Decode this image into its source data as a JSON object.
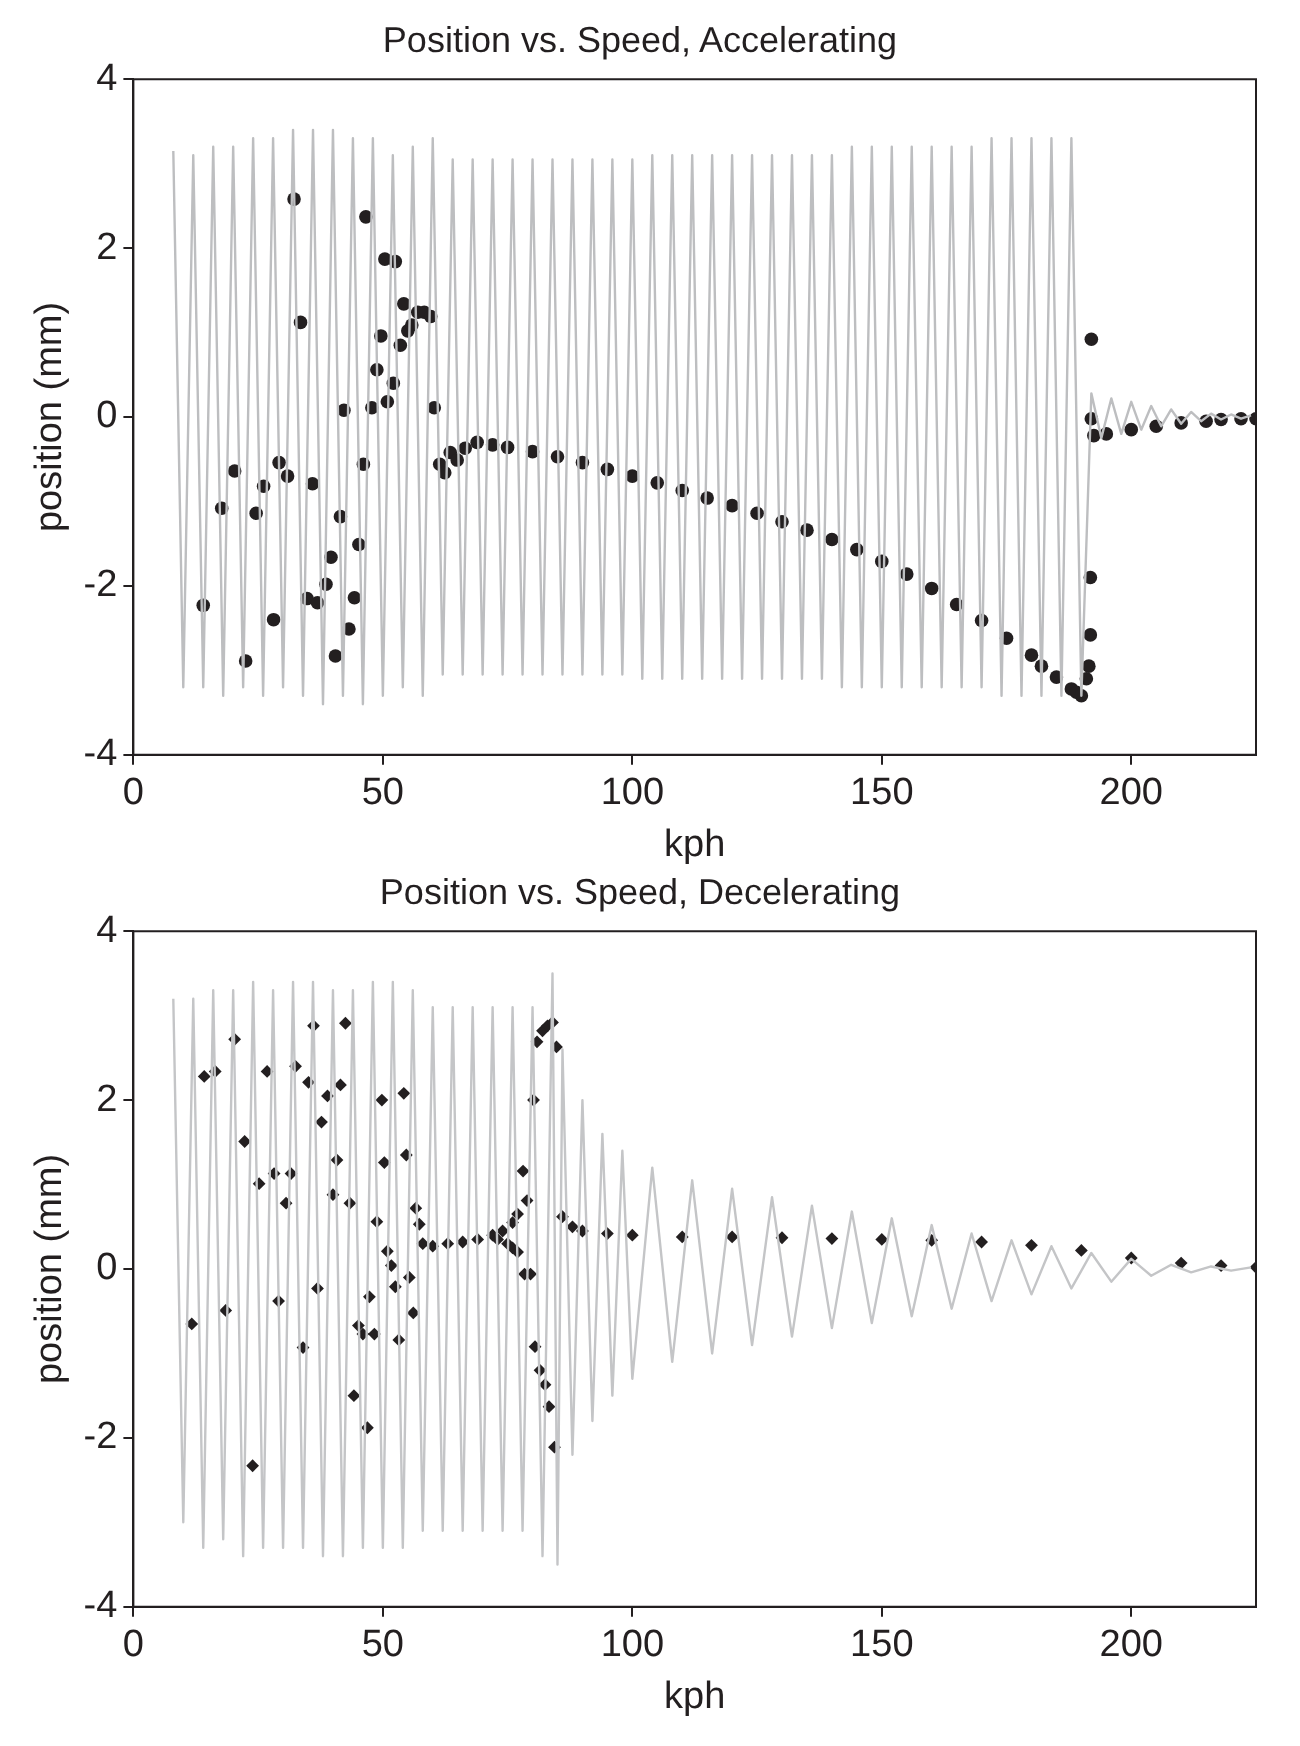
{
  "chart_data": [
    {
      "type": "scatter",
      "title": "Position vs. Speed, Accelerating",
      "xlabel": "kph",
      "ylabel": "position (mm)",
      "xlim": [
        0,
        225
      ],
      "xticks": [
        0,
        50,
        100,
        150,
        200
      ],
      "ylim": [
        -4,
        4
      ],
      "yticks": [
        -4,
        -2,
        0,
        2,
        4
      ],
      "grid": false,
      "legend": false,
      "series": [
        {
          "type": "line",
          "color": "#bdbec0",
          "marker": "none",
          "x": [
            8,
            10,
            12,
            14,
            16,
            18,
            20,
            22,
            24,
            26,
            28,
            30,
            32,
            34,
            36,
            38,
            40,
            42,
            44,
            46,
            48,
            50,
            52,
            54,
            56,
            58,
            60,
            62,
            64,
            66,
            68,
            70,
            72,
            74,
            76,
            78,
            80,
            82,
            84,
            86,
            88,
            90,
            92,
            94,
            96,
            98,
            100,
            102,
            104,
            106,
            108,
            110,
            112,
            114,
            116,
            118,
            120,
            122,
            124,
            126,
            128,
            130,
            132,
            134,
            136,
            138,
            140,
            142,
            144,
            146,
            148,
            150,
            152,
            154,
            156,
            158,
            160,
            162,
            164,
            166,
            168,
            170,
            172,
            174,
            176,
            178,
            180,
            182,
            184,
            186,
            188,
            190,
            192,
            194,
            196,
            198,
            200,
            202,
            204,
            206,
            208,
            210,
            212,
            214,
            216,
            218,
            220,
            222,
            224
          ],
          "values": [
            3.15,
            -3.2,
            3.1,
            -3.2,
            3.2,
            -3.3,
            3.2,
            -3.2,
            3.3,
            -3.3,
            3.3,
            -3.2,
            3.4,
            -3.3,
            3.4,
            -3.4,
            3.4,
            -3.3,
            3.3,
            -3.4,
            3.3,
            -3.3,
            3.1,
            -3.2,
            3.2,
            -3.3,
            3.3,
            -3.05,
            3.05,
            -3.05,
            3.05,
            -3.05,
            3.05,
            -3.05,
            3.05,
            -3.05,
            3.05,
            -3.05,
            3.05,
            -3.05,
            3.05,
            -3.05,
            3.05,
            -3.05,
            3.05,
            -3.05,
            3.05,
            -3.1,
            3.1,
            -3.1,
            3.1,
            -3.1,
            3.1,
            -3.1,
            3.1,
            -3.1,
            3.1,
            -3.1,
            3.1,
            -3.1,
            3.1,
            -3.1,
            3.1,
            -3.1,
            3.1,
            -3.1,
            3.1,
            -3.2,
            3.2,
            -3.2,
            3.2,
            -3.2,
            3.2,
            -3.2,
            3.2,
            -3.2,
            3.2,
            -3.2,
            3.2,
            -3.2,
            3.2,
            -3.2,
            3.3,
            -3.3,
            3.3,
            -3.3,
            3.3,
            -3.3,
            3.3,
            -3.3,
            3.3,
            -3.3,
            0.28,
            -0.25,
            0.22,
            -0.2,
            0.18,
            -0.15,
            0.13,
            -0.11,
            0.09,
            -0.08,
            0.06,
            -0.05,
            0.04,
            -0.03,
            0.03,
            -0.02,
            0.02
          ]
        },
        {
          "type": "scatter",
          "color": "#231f20",
          "marker": "circle",
          "x": [
            14,
            17.7,
            20.3,
            22.5,
            24.6,
            26.1,
            28.1,
            29.2,
            30.9,
            32.2,
            33.5,
            34.8,
            35.9,
            36.9,
            38.6,
            39.6,
            40.5,
            41.5,
            42.2,
            43.2,
            44.3,
            45.2,
            46.1,
            46.6,
            47.8,
            48.8,
            49.6,
            50.4,
            50.9,
            52.1,
            52.5,
            53.5,
            54.2,
            55,
            55.8,
            57,
            58.3,
            59.6,
            60.3,
            61.4,
            62.4,
            63.5,
            64.9,
            66.5,
            68.9,
            72,
            75,
            80,
            85,
            90,
            95,
            100,
            105,
            110,
            115,
            120,
            125,
            130,
            135,
            140,
            145,
            150,
            155,
            160,
            165,
            170,
            175,
            180,
            182,
            185,
            188,
            189,
            190,
            191,
            191.5,
            191.8,
            191.8,
            192,
            192,
            192.5,
            195,
            200,
            205,
            210,
            215,
            218,
            222,
            225
          ],
          "values": [
            -2.23,
            -1.08,
            -0.64,
            -2.89,
            -1.14,
            -0.82,
            -2.4,
            -0.54,
            -0.7,
            2.58,
            1.12,
            -2.15,
            -0.79,
            -2.2,
            -1.98,
            -1.66,
            -2.83,
            -1.18,
            0.08,
            -2.51,
            -2.14,
            -1.51,
            -0.56,
            2.37,
            0.11,
            0.56,
            0.96,
            1.87,
            0.18,
            0.4,
            1.84,
            0.85,
            1.34,
            1.02,
            1.09,
            1.24,
            1.24,
            1.19,
            0.11,
            -0.56,
            -0.66,
            -0.42,
            -0.51,
            -0.37,
            -0.3,
            -0.33,
            -0.36,
            -0.41,
            -0.47,
            -0.54,
            -0.62,
            -0.7,
            -0.78,
            -0.87,
            -0.96,
            -1.05,
            -1.14,
            -1.24,
            -1.34,
            -1.45,
            -1.57,
            -1.71,
            -1.86,
            -2.03,
            -2.22,
            -2.41,
            -2.62,
            -2.82,
            -2.95,
            -3.08,
            -3.22,
            -3.26,
            -3.3,
            -3.1,
            -2.95,
            -2.58,
            -1.9,
            0.92,
            -0.02,
            -0.22,
            -0.2,
            -0.15,
            -0.11,
            -0.07,
            -0.05,
            -0.03,
            -0.02,
            -0.02
          ]
        }
      ]
    },
    {
      "type": "scatter",
      "title": "Position vs. Speed, Decelerating",
      "xlabel": "kph",
      "ylabel": "position (mm)",
      "xlim": [
        0,
        225
      ],
      "xticks": [
        0,
        50,
        100,
        150,
        200
      ],
      "ylim": [
        -4,
        4
      ],
      "yticks": [
        -4,
        -2,
        0,
        2,
        4
      ],
      "grid": false,
      "legend": false,
      "series": [
        {
          "type": "line",
          "color": "#c4c5c7",
          "marker": "none",
          "x": [
            8,
            10,
            12,
            14,
            16,
            18,
            20,
            22,
            24,
            26,
            28,
            30,
            32,
            34,
            36,
            38,
            40,
            42,
            44,
            46,
            48,
            50,
            52,
            54,
            56,
            58,
            60,
            62,
            64,
            66,
            68,
            70,
            72,
            74,
            76,
            78,
            80,
            82,
            84,
            85,
            86,
            88,
            90,
            92,
            94,
            96,
            98,
            100,
            104,
            108,
            112,
            116,
            120,
            124,
            128,
            132,
            136,
            140,
            144,
            148,
            152,
            156,
            160,
            164,
            168,
            172,
            176,
            180,
            184,
            188,
            192,
            196,
            200,
            204,
            208,
            212,
            216,
            220,
            224
          ],
          "values": [
            3.2,
            -3.0,
            3.2,
            -3.3,
            3.3,
            -3.2,
            3.3,
            -3.4,
            3.4,
            -3.3,
            3.3,
            -3.3,
            3.4,
            -3.3,
            3.4,
            -3.4,
            3.3,
            -3.4,
            3.3,
            -3.3,
            3.4,
            -3.3,
            3.4,
            -3.3,
            3.3,
            -3.1,
            3.1,
            -3.1,
            3.1,
            -3.1,
            3.1,
            -3.1,
            3.1,
            -3.1,
            3.1,
            -3.1,
            3.1,
            -3.4,
            3.5,
            -3.5,
            2.6,
            -2.2,
            2.0,
            -1.8,
            1.6,
            -1.5,
            1.4,
            -1.3,
            1.2,
            -1.1,
            1.05,
            -1.0,
            0.95,
            -0.9,
            0.85,
            -0.8,
            0.75,
            -0.7,
            0.68,
            -0.64,
            0.6,
            -0.56,
            0.52,
            -0.47,
            0.42,
            -0.38,
            0.34,
            -0.3,
            0.27,
            -0.23,
            0.19,
            -0.15,
            0.12,
            -0.08,
            0.05,
            -0.04,
            0.03,
            -0.02,
            0.02
          ]
        },
        {
          "type": "scatter",
          "color": "#231f20",
          "marker": "diamond",
          "x": [
            11.7,
            14.2,
            16.4,
            18.5,
            20.3,
            22.3,
            23.9,
            25.2,
            26.8,
            28.2,
            29.1,
            30.6,
            31.6,
            32.5,
            34,
            35.1,
            36.1,
            36.9,
            37.7,
            38.9,
            40,
            40.8,
            41.5,
            42.5,
            43.4,
            44.2,
            45.1,
            46,
            46.9,
            47.3,
            48.3,
            48.8,
            49.8,
            50.3,
            50.9,
            51.7,
            52.5,
            53.2,
            54.2,
            54.7,
            55.3,
            56.1,
            56.6,
            57.3,
            58,
            60,
            63,
            66,
            69,
            72,
            74,
            76,
            77,
            73,
            75,
            76,
            77,
            78.1,
            78.9,
            78.4,
            79.6,
            80.2,
            80.5,
            81.5,
            82.5,
            83.3,
            84.4,
            80.9,
            82,
            83,
            84,
            84.8,
            86,
            88,
            90,
            95,
            100,
            110,
            120,
            130,
            140,
            150,
            160,
            170,
            180,
            190,
            200,
            210,
            218,
            225
          ],
          "values": [
            -0.65,
            2.28,
            2.34,
            -0.49,
            2.72,
            1.51,
            -2.33,
            1.01,
            2.34,
            1.13,
            -0.38,
            0.78,
            1.13,
            2.4,
            -0.93,
            2.21,
            2.88,
            -0.23,
            1.74,
            2.05,
            0.88,
            1.29,
            2.18,
            2.91,
            0.78,
            -1.5,
            -0.67,
            -0.77,
            -1.88,
            -0.33,
            -0.77,
            0.56,
            2.0,
            1.26,
            0.21,
            0.04,
            -0.21,
            -0.84,
            2.08,
            1.35,
            -0.1,
            -0.52,
            0.72,
            0.53,
            0.3,
            0.27,
            0.3,
            0.32,
            0.35,
            0.4,
            0.45,
            0.55,
            0.65,
            0.35,
            0.3,
            0.25,
            0.2,
            1.16,
            0.81,
            -0.06,
            -0.06,
            2.0,
            -0.92,
            -1.2,
            -1.37,
            -1.63,
            -2.11,
            2.69,
            2.82,
            2.88,
            2.92,
            2.63,
            0.62,
            0.5,
            0.45,
            0.42,
            0.4,
            0.38,
            0.38,
            0.37,
            0.36,
            0.35,
            0.34,
            0.32,
            0.28,
            0.22,
            0.13,
            0.07,
            0.04,
            0.02
          ]
        }
      ]
    }
  ]
}
